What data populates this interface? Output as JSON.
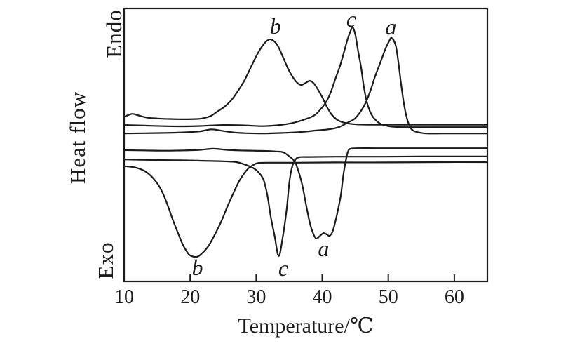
{
  "figure": {
    "background_color": "#ffffff",
    "line_color": "#1b1b1b",
    "plot_border_color": "#1b1b1b"
  },
  "chart_data": {
    "type": "line",
    "title": "",
    "xlabel": "Temperature/℃",
    "ylabel": "Heat flow",
    "endo_label": "Endo",
    "exo_label": "Exo",
    "xlim": [
      10,
      65
    ],
    "ylim": [
      0,
      100
    ],
    "x_ticks": [
      10,
      20,
      30,
      40,
      50,
      60
    ],
    "grid": false,
    "legend": "none",
    "y_units": "arbitrary (Endo up, Exo down)",
    "series": [
      {
        "name": "heating-b",
        "label": "b",
        "type": "endotherm",
        "peak_temp_c": 32.1,
        "shoulder_temp_c": 38.1,
        "points": [
          [
            10,
            60.3
          ],
          [
            10.7,
            61.0
          ],
          [
            11.3,
            61.4
          ],
          [
            12.2,
            60.8
          ],
          [
            13.5,
            60.0
          ],
          [
            15,
            59.7
          ],
          [
            17,
            59.5
          ],
          [
            19,
            59.4
          ],
          [
            21,
            59.5
          ],
          [
            22,
            59.8
          ],
          [
            23.1,
            60.6
          ],
          [
            24.1,
            62.2
          ],
          [
            25.2,
            64.0
          ],
          [
            26.3,
            66.6
          ],
          [
            27.3,
            70.0
          ],
          [
            28.3,
            74.0
          ],
          [
            29.2,
            78.5
          ],
          [
            30.0,
            82.5
          ],
          [
            30.8,
            85.8
          ],
          [
            31.5,
            87.9
          ],
          [
            32.1,
            88.7
          ],
          [
            32.7,
            88.0
          ],
          [
            33.3,
            86.2
          ],
          [
            34.0,
            82.5
          ],
          [
            34.8,
            78.0
          ],
          [
            35.5,
            75.0
          ],
          [
            36.2,
            72.8
          ],
          [
            36.8,
            72.0
          ],
          [
            37.4,
            72.6
          ],
          [
            38.1,
            73.5
          ],
          [
            38.7,
            72.6
          ],
          [
            39.3,
            70.5
          ],
          [
            40.0,
            67.5
          ],
          [
            40.7,
            64.0
          ],
          [
            41.4,
            61.2
          ],
          [
            42.2,
            59.3
          ],
          [
            43.1,
            58.3
          ],
          [
            44.1,
            57.8
          ],
          [
            45.5,
            57.5
          ],
          [
            48,
            57.4
          ],
          [
            52,
            57.4
          ],
          [
            58,
            57.4
          ],
          [
            65,
            57.4
          ]
        ]
      },
      {
        "name": "heating-c",
        "label": "c",
        "type": "endotherm",
        "peak_temp_c": 44.6,
        "points": [
          [
            10,
            57.3
          ],
          [
            13,
            57.1
          ],
          [
            16,
            56.9
          ],
          [
            19,
            56.8
          ],
          [
            22,
            57.0
          ],
          [
            25,
            57.3
          ],
          [
            28,
            57.2
          ],
          [
            31,
            56.9
          ],
          [
            33.5,
            57.3
          ],
          [
            35.2,
            57.9
          ],
          [
            36.4,
            58.6
          ],
          [
            37.4,
            59.4
          ],
          [
            38.3,
            60.2
          ],
          [
            39.1,
            61.4
          ],
          [
            39.9,
            63.5
          ],
          [
            40.6,
            65.8
          ],
          [
            41.3,
            69.4
          ],
          [
            42.0,
            74.3
          ],
          [
            42.7,
            79.0
          ],
          [
            43.3,
            84.1
          ],
          [
            43.8,
            88.4
          ],
          [
            44.3,
            91.8
          ],
          [
            44.6,
            93.1
          ],
          [
            45.0,
            90.5
          ],
          [
            45.4,
            84.8
          ],
          [
            45.9,
            78.1
          ],
          [
            46.3,
            71.2
          ],
          [
            46.8,
            65.3
          ],
          [
            47.4,
            61.4
          ],
          [
            48.1,
            59.1
          ],
          [
            48.8,
            57.8
          ],
          [
            49.8,
            57.0
          ],
          [
            51,
            56.6
          ],
          [
            54,
            56.5
          ],
          [
            58,
            56.5
          ],
          [
            65,
            56.5
          ]
        ]
      },
      {
        "name": "heating-a",
        "label": "a",
        "type": "endotherm",
        "peak_temp_c": 50.5,
        "points": [
          [
            10,
            54.2
          ],
          [
            13,
            54.3
          ],
          [
            16,
            54.4
          ],
          [
            19,
            54.6
          ],
          [
            21.5,
            55.0
          ],
          [
            23.2,
            55.7
          ],
          [
            24.8,
            55.2
          ],
          [
            26.5,
            54.6
          ],
          [
            28.5,
            54.3
          ],
          [
            31,
            54.2
          ],
          [
            34,
            54.4
          ],
          [
            37,
            54.8
          ],
          [
            39.1,
            55.3
          ],
          [
            41.2,
            55.8
          ],
          [
            42.6,
            56.6
          ],
          [
            43.8,
            58.1
          ],
          [
            44.9,
            59.6
          ],
          [
            45.8,
            62.2
          ],
          [
            46.6,
            65.6
          ],
          [
            47.3,
            69.9
          ],
          [
            48.0,
            75.1
          ],
          [
            48.8,
            80.2
          ],
          [
            49.5,
            84.8
          ],
          [
            50.1,
            87.9
          ],
          [
            50.5,
            89.2
          ],
          [
            51.1,
            86.6
          ],
          [
            51.5,
            80.7
          ],
          [
            51.9,
            73.0
          ],
          [
            52.3,
            66.1
          ],
          [
            52.7,
            60.9
          ],
          [
            53.1,
            57.6
          ],
          [
            53.5,
            55.8
          ],
          [
            54.0,
            55.0
          ],
          [
            54.8,
            54.5
          ],
          [
            55.8,
            54.2
          ],
          [
            58,
            54.2
          ],
          [
            61,
            54.2
          ],
          [
            65,
            54.2
          ]
        ]
      },
      {
        "name": "cooling-a",
        "label": "a",
        "type": "exotherm",
        "peak_temp_c": 39.1,
        "points": [
          [
            10,
            48.1
          ],
          [
            13,
            48.0
          ],
          [
            16,
            47.9
          ],
          [
            19,
            48.0
          ],
          [
            21.5,
            48.2
          ],
          [
            23.5,
            48.6
          ],
          [
            25.5,
            48.2
          ],
          [
            27.5,
            48.0
          ],
          [
            29.5,
            47.9
          ],
          [
            31.5,
            47.8
          ],
          [
            33,
            47.6
          ],
          [
            34.1,
            47.3
          ],
          [
            35.0,
            45.8
          ],
          [
            35.8,
            44.0
          ],
          [
            36.4,
            40.4
          ],
          [
            37.0,
            35.0
          ],
          [
            37.6,
            27.5
          ],
          [
            38.1,
            21.6
          ],
          [
            38.6,
            17.7
          ],
          [
            39.1,
            15.7
          ],
          [
            39.7,
            16.8
          ],
          [
            40.2,
            17.7
          ],
          [
            40.7,
            17.2
          ],
          [
            41.1,
            16.7
          ],
          [
            41.6,
            18.5
          ],
          [
            42.2,
            24.2
          ],
          [
            42.8,
            31.4
          ],
          [
            43.2,
            39.1
          ],
          [
            43.6,
            44.7
          ],
          [
            43.9,
            47.6
          ],
          [
            44.3,
            48.6
          ],
          [
            45.5,
            48.8
          ],
          [
            48,
            48.8
          ],
          [
            52,
            48.8
          ],
          [
            58,
            48.8
          ],
          [
            65,
            48.8
          ]
        ]
      },
      {
        "name": "cooling-c",
        "label": "c",
        "type": "exotherm",
        "peak_temp_c": 33.4,
        "points": [
          [
            10,
            44.7
          ],
          [
            14,
            44.5
          ],
          [
            18,
            44.4
          ],
          [
            22,
            44.2
          ],
          [
            25,
            44.0
          ],
          [
            27,
            43.7
          ],
          [
            28.4,
            42.7
          ],
          [
            29.5,
            41.6
          ],
          [
            30.3,
            40.1
          ],
          [
            31.1,
            37.3
          ],
          [
            31.7,
            31.4
          ],
          [
            32.2,
            23.7
          ],
          [
            32.8,
            16.5
          ],
          [
            33.4,
            9.3
          ],
          [
            34.0,
            15.9
          ],
          [
            34.6,
            26.2
          ],
          [
            35.0,
            36.0
          ],
          [
            35.4,
            41.6
          ],
          [
            35.9,
            44.5
          ],
          [
            36.5,
            45.5
          ],
          [
            38,
            45.6
          ],
          [
            42,
            45.7
          ],
          [
            48,
            45.7
          ],
          [
            55,
            45.8
          ],
          [
            65,
            45.8
          ]
        ]
      },
      {
        "name": "cooling-b",
        "label": "b",
        "type": "exotherm",
        "peak_temp_c": 20.5,
        "points": [
          [
            10,
            42.2
          ],
          [
            11,
            42.0
          ],
          [
            11.9,
            41.6
          ],
          [
            13.0,
            40.6
          ],
          [
            14.0,
            38.8
          ],
          [
            15.0,
            36.0
          ],
          [
            15.9,
            32.1
          ],
          [
            16.7,
            27.2
          ],
          [
            17.4,
            22.4
          ],
          [
            18.2,
            17.5
          ],
          [
            18.8,
            13.9
          ],
          [
            19.4,
            11.3
          ],
          [
            20.0,
            9.5
          ],
          [
            21.0,
            9.0
          ],
          [
            21.8,
            10.3
          ],
          [
            22.8,
            13.1
          ],
          [
            23.7,
            17.0
          ],
          [
            24.7,
            21.9
          ],
          [
            25.6,
            27.2
          ],
          [
            26.5,
            32.1
          ],
          [
            27.3,
            36.2
          ],
          [
            28.1,
            39.3
          ],
          [
            28.8,
            41.4
          ],
          [
            29.6,
            42.7
          ],
          [
            30.3,
            43.4
          ],
          [
            32,
            43.5
          ],
          [
            36,
            43.5
          ],
          [
            42,
            43.6
          ],
          [
            50,
            43.6
          ],
          [
            58,
            43.7
          ],
          [
            65,
            43.7
          ]
        ]
      }
    ],
    "annotations": [
      {
        "text": "b",
        "role": "endotherm-peak-label",
        "t": 32.9,
        "u": 93.6
      },
      {
        "text": "c",
        "role": "endotherm-peak-label",
        "t": 44.4,
        "u": 96.1
      },
      {
        "text": "a",
        "role": "endotherm-peak-label",
        "t": 50.4,
        "u": 93.3
      },
      {
        "text": "b",
        "role": "exotherm-peak-label",
        "t": 21.1,
        "u": 5.1
      },
      {
        "text": "c",
        "role": "exotherm-peak-label",
        "t": 34.1,
        "u": 4.9
      },
      {
        "text": "a",
        "role": "exotherm-peak-label",
        "t": 40.2,
        "u": 12.1
      }
    ]
  }
}
